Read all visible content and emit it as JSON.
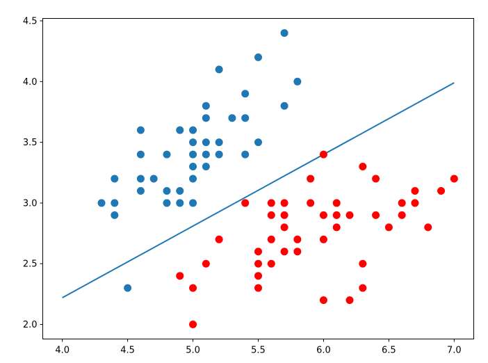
{
  "chart_data": {
    "type": "scatter",
    "title": "",
    "xlabel": "",
    "ylabel": "",
    "xlim": [
      3.85,
      7.15
    ],
    "ylim": [
      1.88,
      4.52
    ],
    "xticks": [
      "4.0",
      "4.5",
      "5.0",
      "5.5",
      "6.0",
      "6.5",
      "7.0"
    ],
    "yticks": [
      "2.0",
      "2.5",
      "3.0",
      "3.5",
      "4.0",
      "4.5"
    ],
    "grid": false,
    "legend": "none",
    "series": [
      {
        "color": "#1f77b4",
        "points": [
          [
            4.3,
            3.0
          ],
          [
            4.4,
            2.9
          ],
          [
            4.4,
            3.0
          ],
          [
            4.4,
            3.2
          ],
          [
            4.5,
            2.3
          ],
          [
            4.6,
            3.1
          ],
          [
            4.6,
            3.2
          ],
          [
            4.6,
            3.4
          ],
          [
            4.6,
            3.6
          ],
          [
            4.7,
            3.2
          ],
          [
            4.8,
            3.0
          ],
          [
            4.8,
            3.1
          ],
          [
            4.8,
            3.4
          ],
          [
            4.9,
            3.0
          ],
          [
            4.9,
            3.1
          ],
          [
            4.9,
            3.6
          ],
          [
            5.0,
            3.0
          ],
          [
            5.0,
            3.2
          ],
          [
            5.0,
            3.3
          ],
          [
            5.0,
            3.4
          ],
          [
            5.0,
            3.5
          ],
          [
            5.0,
            3.6
          ],
          [
            5.1,
            3.3
          ],
          [
            5.1,
            3.4
          ],
          [
            5.1,
            3.5
          ],
          [
            5.1,
            3.7
          ],
          [
            5.1,
            3.8
          ],
          [
            5.2,
            3.4
          ],
          [
            5.2,
            3.5
          ],
          [
            5.2,
            4.1
          ],
          [
            5.3,
            3.7
          ],
          [
            5.4,
            3.4
          ],
          [
            5.4,
            3.7
          ],
          [
            5.4,
            3.9
          ],
          [
            5.5,
            3.5
          ],
          [
            5.5,
            4.2
          ],
          [
            5.7,
            3.8
          ],
          [
            5.7,
            4.4
          ],
          [
            5.8,
            4.0
          ]
        ]
      },
      {
        "color": "#ff0000",
        "points": [
          [
            4.9,
            2.4
          ],
          [
            5.0,
            2.0
          ],
          [
            5.0,
            2.3
          ],
          [
            5.1,
            2.5
          ],
          [
            5.2,
            2.7
          ],
          [
            5.4,
            3.0
          ],
          [
            5.5,
            2.3
          ],
          [
            5.5,
            2.4
          ],
          [
            5.5,
            2.5
          ],
          [
            5.5,
            2.6
          ],
          [
            5.6,
            2.5
          ],
          [
            5.6,
            2.7
          ],
          [
            5.6,
            2.9
          ],
          [
            5.6,
            3.0
          ],
          [
            5.7,
            2.6
          ],
          [
            5.7,
            2.8
          ],
          [
            5.7,
            2.9
          ],
          [
            5.7,
            3.0
          ],
          [
            5.8,
            2.6
          ],
          [
            5.8,
            2.7
          ],
          [
            5.9,
            3.0
          ],
          [
            5.9,
            3.2
          ],
          [
            6.0,
            2.2
          ],
          [
            6.0,
            2.7
          ],
          [
            6.0,
            2.9
          ],
          [
            6.0,
            3.4
          ],
          [
            6.1,
            2.8
          ],
          [
            6.1,
            2.9
          ],
          [
            6.1,
            3.0
          ],
          [
            6.2,
            2.2
          ],
          [
            6.2,
            2.9
          ],
          [
            6.3,
            2.3
          ],
          [
            6.3,
            2.5
          ],
          [
            6.3,
            3.3
          ],
          [
            6.4,
            2.9
          ],
          [
            6.4,
            3.2
          ],
          [
            6.5,
            2.8
          ],
          [
            6.6,
            2.9
          ],
          [
            6.6,
            3.0
          ],
          [
            6.7,
            3.0
          ],
          [
            6.7,
            3.1
          ],
          [
            6.8,
            2.8
          ],
          [
            6.9,
            3.1
          ],
          [
            7.0,
            3.2
          ]
        ]
      }
    ],
    "line": {
      "color": "#1f77b4",
      "points": [
        [
          4.0,
          2.22
        ],
        [
          7.0,
          3.99
        ]
      ]
    }
  }
}
